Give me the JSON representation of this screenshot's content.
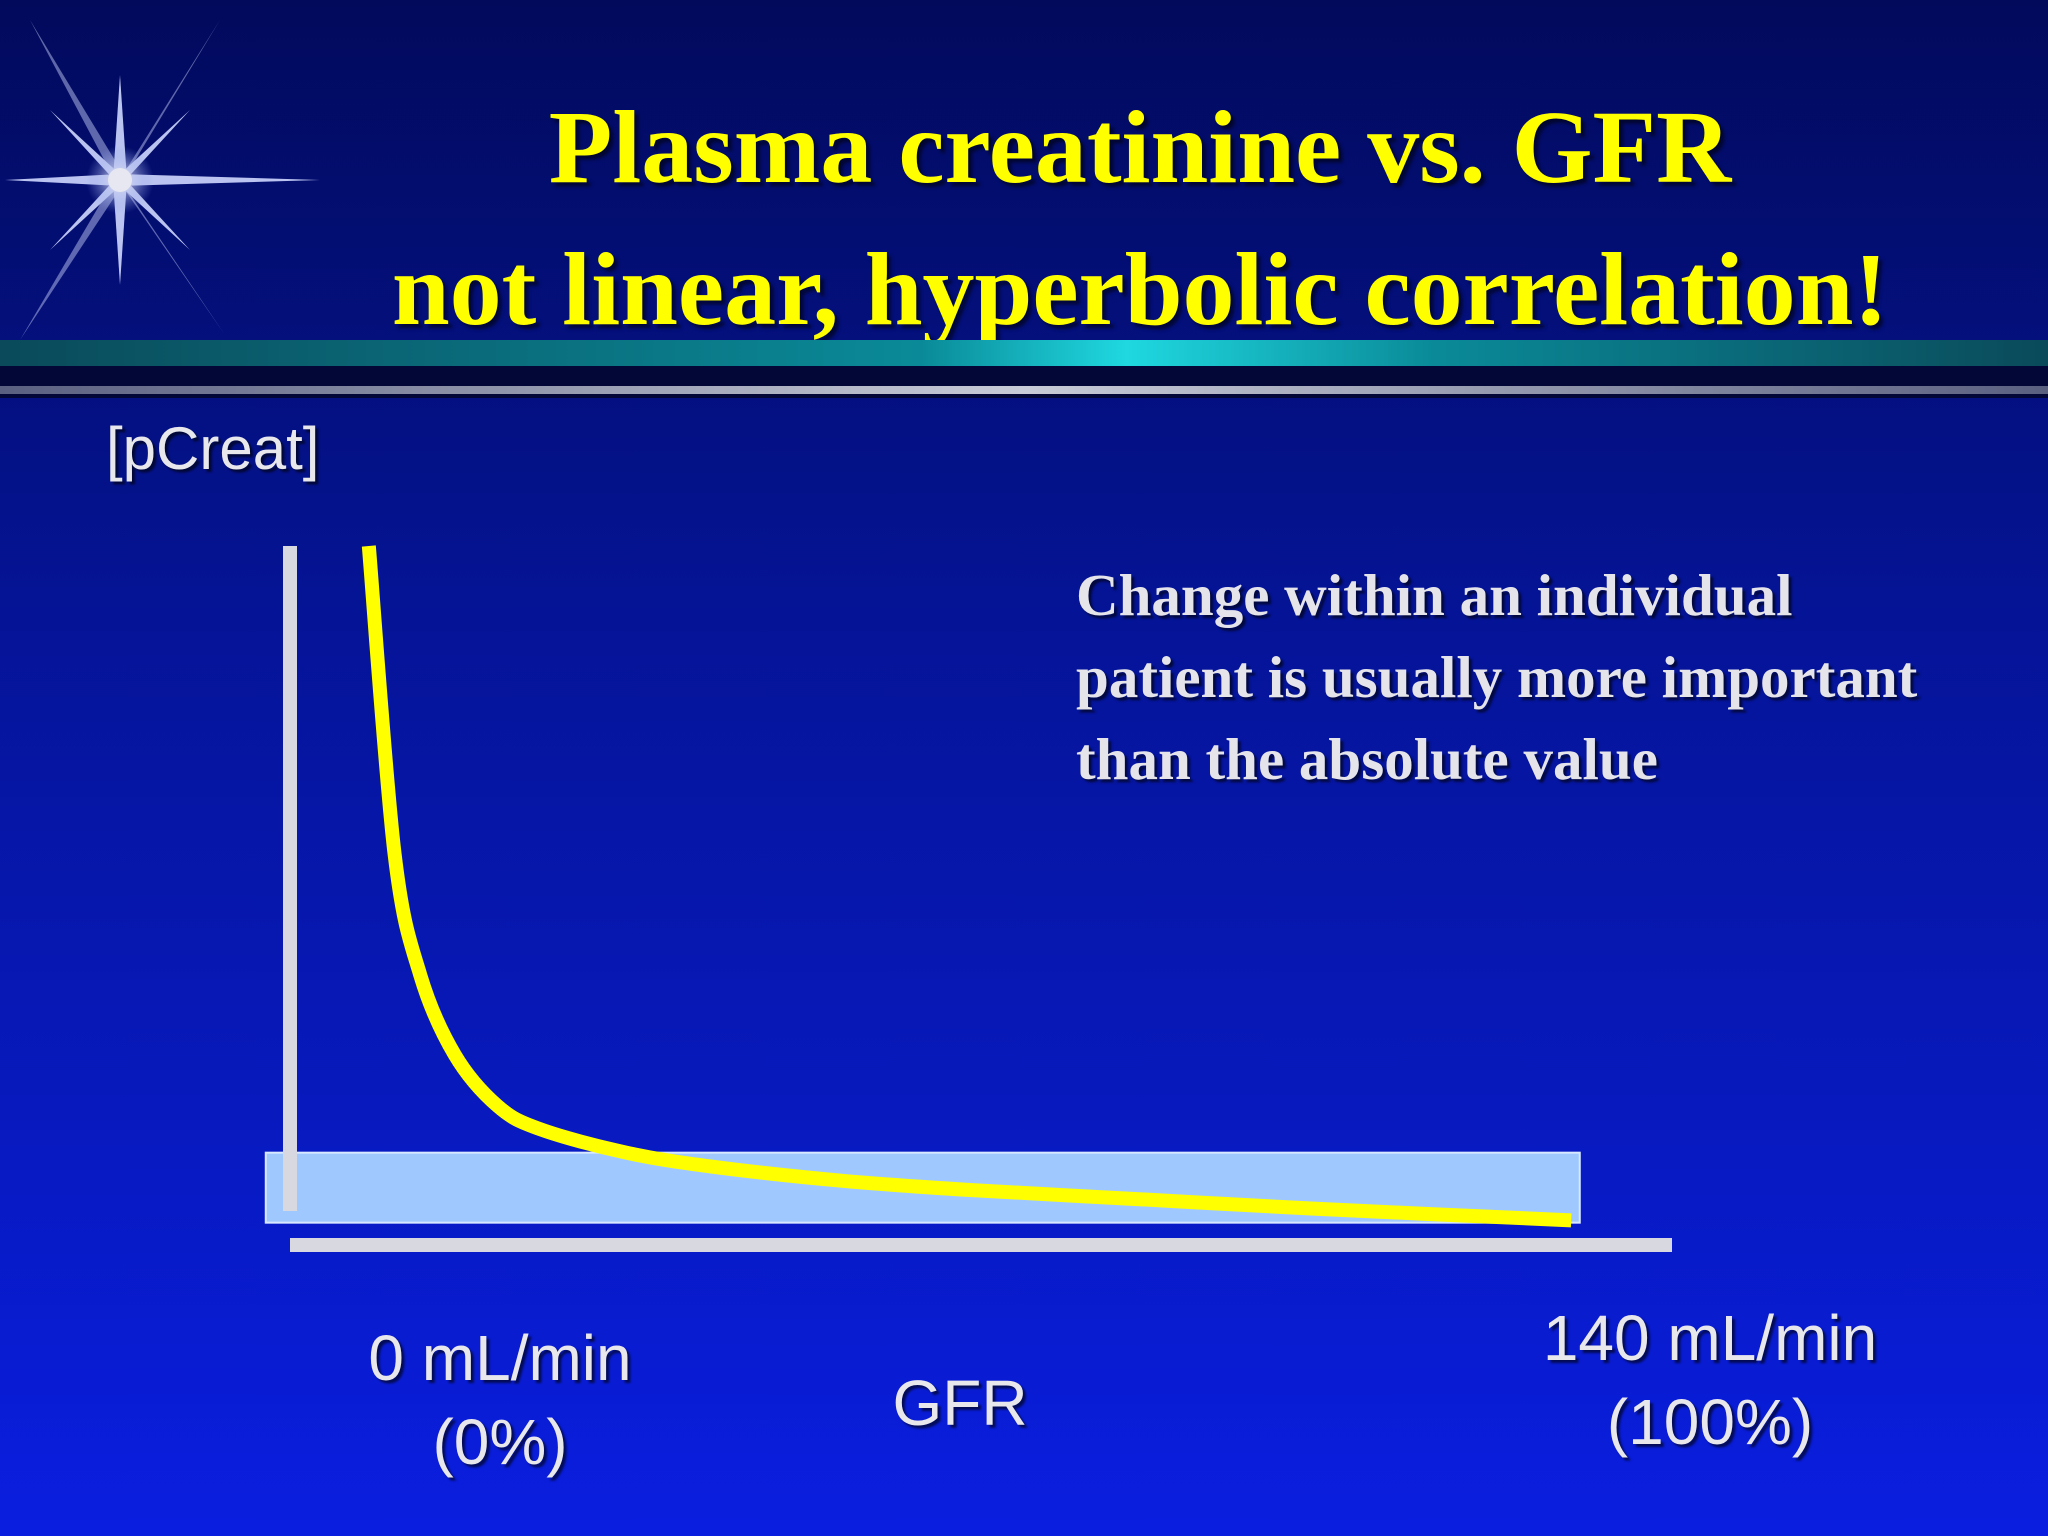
{
  "slide": {
    "title_line1": "Plasma creatinine vs. GFR",
    "title_line2": "not linear, hyperbolic correlation!",
    "annotation": "Change within an individual patient is usually more important than the absolute value"
  },
  "chart_data": {
    "type": "line",
    "title": "",
    "ylabel": "[pCreat]",
    "xlabel": "GFR",
    "x_ticks": [
      {
        "x": 0,
        "line1": "0 mL/min",
        "line2": "(0%)"
      },
      {
        "x": 140,
        "line1": "140 mL/min",
        "line2": "(100%)"
      }
    ],
    "xlim": [
      -15,
      155
    ],
    "ylim": [
      0,
      15
    ],
    "series": [
      {
        "color": "#ffff00",
        "x": [
          0,
          3,
          6,
          10,
          15,
          20,
          30,
          40,
          55,
          70,
          90,
          110,
          140
        ],
        "y": [
          15,
          8.4,
          5.8,
          4.1,
          3.0,
          2.5,
          2.0,
          1.7,
          1.4,
          1.2,
          1.0,
          0.8,
          0.55
        ]
      }
    ],
    "reference_band": {
      "x": [
        -12,
        141
      ],
      "y": [
        0.5,
        2.0
      ],
      "color": "#9fc8ff"
    },
    "grid": false,
    "legend": "none"
  }
}
